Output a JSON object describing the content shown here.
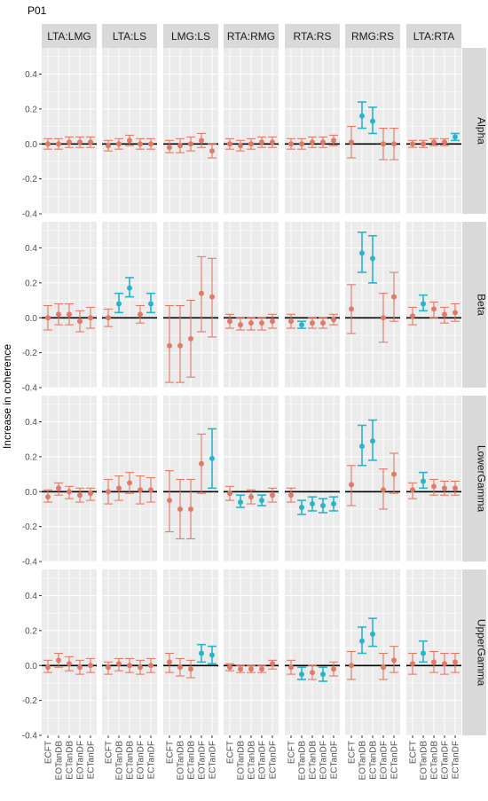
{
  "title": "P01",
  "chart_data": {
    "type": "scatter",
    "title": "P01",
    "xlabel": "",
    "ylabel": "Increase in coherence",
    "ylim": [
      -0.4,
      0.55
    ],
    "yticks": [
      -0.4,
      -0.2,
      0.0,
      0.2,
      0.4
    ],
    "ytick_labels": [
      "-0.4",
      "-0.2",
      "0.0",
      "0.2",
      "0.4"
    ],
    "grid": true,
    "reference_line": 0,
    "colors": {
      "nonsig": "#e07b6a",
      "sig": "#2ab4cc",
      "panel_bg": "#ebebeb",
      "strip_bg": "#d9d9d9",
      "grid": "#ffffff",
      "zero_line": "#000000"
    },
    "columns": [
      "LTA:LMG",
      "LTA:LS",
      "LMG:LS",
      "RTA:RMG",
      "RTA:RS",
      "RMG:RS",
      "LTA:RTA"
    ],
    "rows": [
      "Alpha",
      "Beta",
      "LowerGamma",
      "UpperGamma"
    ],
    "categories": [
      "ECFT",
      "EOTanDB",
      "ECTanDB",
      "EOTanDF",
      "ECTanDF"
    ],
    "panels": [
      [
        [
          {
            "y": 0.0,
            "lo": -0.03,
            "hi": 0.03,
            "sig": false
          },
          {
            "y": 0.0,
            "lo": -0.03,
            "hi": 0.03,
            "sig": false
          },
          {
            "y": 0.01,
            "lo": -0.02,
            "hi": 0.04,
            "sig": false
          },
          {
            "y": 0.01,
            "lo": -0.02,
            "hi": 0.04,
            "sig": false
          },
          {
            "y": 0.01,
            "lo": -0.02,
            "hi": 0.04,
            "sig": false
          }
        ],
        [
          {
            "y": -0.01,
            "lo": -0.04,
            "hi": 0.02,
            "sig": false
          },
          {
            "y": 0.0,
            "lo": -0.03,
            "hi": 0.03,
            "sig": false
          },
          {
            "y": 0.02,
            "lo": -0.01,
            "hi": 0.05,
            "sig": false
          },
          {
            "y": 0.0,
            "lo": -0.03,
            "hi": 0.03,
            "sig": false
          },
          {
            "y": 0.0,
            "lo": -0.03,
            "hi": 0.03,
            "sig": false
          }
        ],
        [
          {
            "y": -0.02,
            "lo": -0.05,
            "hi": 0.02,
            "sig": false
          },
          {
            "y": -0.01,
            "lo": -0.05,
            "hi": 0.03,
            "sig": false
          },
          {
            "y": 0.0,
            "lo": -0.04,
            "hi": 0.04,
            "sig": false
          },
          {
            "y": 0.02,
            "lo": -0.02,
            "hi": 0.06,
            "sig": false
          },
          {
            "y": -0.04,
            "lo": -0.08,
            "hi": 0.0,
            "sig": false
          }
        ],
        [
          {
            "y": 0.0,
            "lo": -0.03,
            "hi": 0.03,
            "sig": false
          },
          {
            "y": -0.01,
            "lo": -0.04,
            "hi": 0.02,
            "sig": false
          },
          {
            "y": 0.0,
            "lo": -0.03,
            "hi": 0.03,
            "sig": false
          },
          {
            "y": 0.01,
            "lo": -0.02,
            "hi": 0.04,
            "sig": false
          },
          {
            "y": 0.01,
            "lo": -0.02,
            "hi": 0.04,
            "sig": false
          }
        ],
        [
          {
            "y": 0.0,
            "lo": -0.03,
            "hi": 0.03,
            "sig": false
          },
          {
            "y": 0.0,
            "lo": -0.03,
            "hi": 0.03,
            "sig": false
          },
          {
            "y": 0.01,
            "lo": -0.02,
            "hi": 0.04,
            "sig": false
          },
          {
            "y": 0.01,
            "lo": -0.02,
            "hi": 0.04,
            "sig": false
          },
          {
            "y": 0.02,
            "lo": -0.01,
            "hi": 0.05,
            "sig": false
          }
        ],
        [
          {
            "y": 0.01,
            "lo": -0.08,
            "hi": 0.1,
            "sig": false
          },
          {
            "y": 0.16,
            "lo": 0.09,
            "hi": 0.24,
            "sig": true
          },
          {
            "y": 0.13,
            "lo": 0.06,
            "hi": 0.21,
            "sig": true
          },
          {
            "y": 0.0,
            "lo": -0.09,
            "hi": 0.09,
            "sig": false
          },
          {
            "y": 0.0,
            "lo": -0.09,
            "hi": 0.09,
            "sig": false
          }
        ],
        [
          {
            "y": 0.0,
            "lo": -0.02,
            "hi": 0.02,
            "sig": false
          },
          {
            "y": 0.0,
            "lo": -0.02,
            "hi": 0.02,
            "sig": false
          },
          {
            "y": 0.01,
            "lo": -0.01,
            "hi": 0.03,
            "sig": false
          },
          {
            "y": 0.01,
            "lo": -0.01,
            "hi": 0.03,
            "sig": false
          },
          {
            "y": 0.04,
            "lo": 0.02,
            "hi": 0.06,
            "sig": true
          }
        ]
      ],
      [
        [
          {
            "y": 0.0,
            "lo": -0.07,
            "hi": 0.07,
            "sig": false
          },
          {
            "y": 0.02,
            "lo": -0.04,
            "hi": 0.08,
            "sig": false
          },
          {
            "y": 0.02,
            "lo": -0.04,
            "hi": 0.08,
            "sig": false
          },
          {
            "y": -0.02,
            "lo": -0.08,
            "hi": 0.04,
            "sig": false
          },
          {
            "y": 0.0,
            "lo": -0.06,
            "hi": 0.06,
            "sig": false
          }
        ],
        [
          {
            "y": 0.0,
            "lo": -0.05,
            "hi": 0.05,
            "sig": false
          },
          {
            "y": 0.08,
            "lo": 0.03,
            "hi": 0.14,
            "sig": true
          },
          {
            "y": 0.17,
            "lo": 0.12,
            "hi": 0.23,
            "sig": true
          },
          {
            "y": 0.02,
            "lo": -0.03,
            "hi": 0.07,
            "sig": false
          },
          {
            "y": 0.08,
            "lo": 0.03,
            "hi": 0.14,
            "sig": true
          }
        ],
        [
          {
            "y": -0.16,
            "lo": -0.37,
            "hi": 0.07,
            "sig": false
          },
          {
            "y": -0.16,
            "lo": -0.37,
            "hi": 0.07,
            "sig": false
          },
          {
            "y": -0.12,
            "lo": -0.34,
            "hi": 0.1,
            "sig": false
          },
          {
            "y": 0.14,
            "lo": -0.08,
            "hi": 0.35,
            "sig": false
          },
          {
            "y": 0.12,
            "lo": -0.11,
            "hi": 0.34,
            "sig": false
          }
        ],
        [
          {
            "y": -0.02,
            "lo": -0.06,
            "hi": 0.02,
            "sig": false
          },
          {
            "y": -0.04,
            "lo": -0.07,
            "hi": 0.0,
            "sig": false
          },
          {
            "y": -0.03,
            "lo": -0.07,
            "hi": 0.0,
            "sig": false
          },
          {
            "y": -0.03,
            "lo": -0.07,
            "hi": 0.0,
            "sig": false
          },
          {
            "y": -0.02,
            "lo": -0.06,
            "hi": 0.02,
            "sig": false
          }
        ],
        [
          {
            "y": -0.02,
            "lo": -0.06,
            "hi": 0.02,
            "sig": false
          },
          {
            "y": -0.04,
            "lo": -0.06,
            "hi": -0.02,
            "sig": true
          },
          {
            "y": -0.03,
            "lo": -0.06,
            "hi": 0.0,
            "sig": false
          },
          {
            "y": -0.03,
            "lo": -0.06,
            "hi": 0.0,
            "sig": false
          },
          {
            "y": -0.01,
            "lo": -0.04,
            "hi": 0.02,
            "sig": false
          }
        ],
        [
          {
            "y": 0.05,
            "lo": -0.09,
            "hi": 0.19,
            "sig": false
          },
          {
            "y": 0.37,
            "lo": 0.26,
            "hi": 0.49,
            "sig": true
          },
          {
            "y": 0.34,
            "lo": 0.2,
            "hi": 0.47,
            "sig": true
          },
          {
            "y": 0.0,
            "lo": -0.14,
            "hi": 0.14,
            "sig": false
          },
          {
            "y": 0.12,
            "lo": -0.02,
            "hi": 0.26,
            "sig": false
          }
        ],
        [
          {
            "y": 0.01,
            "lo": -0.04,
            "hi": 0.06,
            "sig": false
          },
          {
            "y": 0.08,
            "lo": 0.04,
            "hi": 0.13,
            "sig": true
          },
          {
            "y": 0.05,
            "lo": 0.0,
            "hi": 0.09,
            "sig": false
          },
          {
            "y": 0.02,
            "lo": -0.03,
            "hi": 0.06,
            "sig": false
          },
          {
            "y": 0.03,
            "lo": -0.02,
            "hi": 0.08,
            "sig": false
          }
        ]
      ],
      [
        [
          {
            "y": -0.03,
            "lo": -0.06,
            "hi": 0.01,
            "sig": false
          },
          {
            "y": 0.02,
            "lo": -0.02,
            "hi": 0.05,
            "sig": false
          },
          {
            "y": 0.0,
            "lo": -0.04,
            "hi": 0.03,
            "sig": false
          },
          {
            "y": -0.02,
            "lo": -0.06,
            "hi": 0.02,
            "sig": false
          },
          {
            "y": -0.01,
            "lo": -0.05,
            "hi": 0.02,
            "sig": false
          }
        ],
        [
          {
            "y": 0.0,
            "lo": -0.07,
            "hi": 0.07,
            "sig": false
          },
          {
            "y": 0.02,
            "lo": -0.05,
            "hi": 0.09,
            "sig": false
          },
          {
            "y": 0.05,
            "lo": -0.01,
            "hi": 0.11,
            "sig": false
          },
          {
            "y": 0.01,
            "lo": -0.07,
            "hi": 0.09,
            "sig": false
          },
          {
            "y": 0.01,
            "lo": -0.06,
            "hi": 0.08,
            "sig": false
          }
        ],
        [
          {
            "y": -0.05,
            "lo": -0.23,
            "hi": 0.12,
            "sig": false
          },
          {
            "y": -0.1,
            "lo": -0.27,
            "hi": 0.07,
            "sig": false
          },
          {
            "y": -0.1,
            "lo": -0.27,
            "hi": 0.07,
            "sig": false
          },
          {
            "y": 0.16,
            "lo": -0.01,
            "hi": 0.33,
            "sig": false
          },
          {
            "y": 0.19,
            "lo": 0.02,
            "hi": 0.36,
            "sig": true
          }
        ],
        [
          {
            "y": -0.01,
            "lo": -0.05,
            "hi": 0.03,
            "sig": false
          },
          {
            "y": -0.06,
            "lo": -0.09,
            "hi": -0.02,
            "sig": true
          },
          {
            "y": -0.03,
            "lo": -0.07,
            "hi": 0.01,
            "sig": false
          },
          {
            "y": -0.05,
            "lo": -0.08,
            "hi": -0.02,
            "sig": true
          },
          {
            "y": -0.02,
            "lo": -0.06,
            "hi": 0.02,
            "sig": false
          }
        ],
        [
          {
            "y": -0.02,
            "lo": -0.06,
            "hi": 0.02,
            "sig": false
          },
          {
            "y": -0.09,
            "lo": -0.13,
            "hi": -0.05,
            "sig": true
          },
          {
            "y": -0.07,
            "lo": -0.11,
            "hi": -0.03,
            "sig": true
          },
          {
            "y": -0.08,
            "lo": -0.12,
            "hi": -0.04,
            "sig": true
          },
          {
            "y": -0.07,
            "lo": -0.11,
            "hi": -0.03,
            "sig": true
          }
        ],
        [
          {
            "y": 0.04,
            "lo": -0.08,
            "hi": 0.15,
            "sig": false
          },
          {
            "y": 0.26,
            "lo": 0.15,
            "hi": 0.38,
            "sig": true
          },
          {
            "y": 0.29,
            "lo": 0.18,
            "hi": 0.41,
            "sig": true
          },
          {
            "y": 0.01,
            "lo": -0.1,
            "hi": 0.13,
            "sig": false
          },
          {
            "y": 0.1,
            "lo": -0.01,
            "hi": 0.22,
            "sig": false
          }
        ],
        [
          {
            "y": 0.01,
            "lo": -0.04,
            "hi": 0.05,
            "sig": false
          },
          {
            "y": 0.06,
            "lo": 0.02,
            "hi": 0.11,
            "sig": true
          },
          {
            "y": 0.03,
            "lo": -0.02,
            "hi": 0.07,
            "sig": false
          },
          {
            "y": 0.02,
            "lo": -0.02,
            "hi": 0.06,
            "sig": false
          },
          {
            "y": 0.02,
            "lo": -0.02,
            "hi": 0.06,
            "sig": false
          }
        ]
      ],
      [
        [
          {
            "y": -0.01,
            "lo": -0.04,
            "hi": 0.03,
            "sig": false
          },
          {
            "y": 0.03,
            "lo": -0.01,
            "hi": 0.07,
            "sig": false
          },
          {
            "y": 0.01,
            "lo": -0.03,
            "hi": 0.05,
            "sig": false
          },
          {
            "y": -0.01,
            "lo": -0.05,
            "hi": 0.03,
            "sig": false
          },
          {
            "y": 0.0,
            "lo": -0.04,
            "hi": 0.04,
            "sig": false
          }
        ],
        [
          {
            "y": -0.01,
            "lo": -0.05,
            "hi": 0.02,
            "sig": false
          },
          {
            "y": 0.01,
            "lo": -0.03,
            "hi": 0.04,
            "sig": false
          },
          {
            "y": 0.0,
            "lo": -0.04,
            "hi": 0.04,
            "sig": false
          },
          {
            "y": -0.01,
            "lo": -0.05,
            "hi": 0.03,
            "sig": false
          },
          {
            "y": 0.0,
            "lo": -0.04,
            "hi": 0.04,
            "sig": false
          }
        ],
        [
          {
            "y": 0.02,
            "lo": -0.04,
            "hi": 0.07,
            "sig": false
          },
          {
            "y": -0.01,
            "lo": -0.06,
            "hi": 0.04,
            "sig": false
          },
          {
            "y": -0.02,
            "lo": -0.07,
            "hi": 0.03,
            "sig": false
          },
          {
            "y": 0.07,
            "lo": 0.02,
            "hi": 0.12,
            "sig": true
          },
          {
            "y": 0.06,
            "lo": 0.01,
            "hi": 0.11,
            "sig": true
          }
        ],
        [
          {
            "y": -0.01,
            "lo": -0.03,
            "hi": 0.01,
            "sig": false
          },
          {
            "y": -0.02,
            "lo": -0.04,
            "hi": 0.0,
            "sig": false
          },
          {
            "y": -0.02,
            "lo": -0.04,
            "hi": 0.0,
            "sig": false
          },
          {
            "y": -0.02,
            "lo": -0.04,
            "hi": 0.0,
            "sig": false
          },
          {
            "y": 0.01,
            "lo": -0.02,
            "hi": 0.03,
            "sig": false
          }
        ],
        [
          {
            "y": -0.01,
            "lo": -0.05,
            "hi": 0.03,
            "sig": false
          },
          {
            "y": -0.05,
            "lo": -0.08,
            "hi": -0.01,
            "sig": true
          },
          {
            "y": -0.04,
            "lo": -0.08,
            "hi": 0.0,
            "sig": false
          },
          {
            "y": -0.05,
            "lo": -0.09,
            "hi": -0.01,
            "sig": true
          },
          {
            "y": -0.02,
            "lo": -0.06,
            "hi": 0.02,
            "sig": false
          }
        ],
        [
          {
            "y": 0.0,
            "lo": -0.08,
            "hi": 0.08,
            "sig": false
          },
          {
            "y": 0.14,
            "lo": 0.07,
            "hi": 0.22,
            "sig": true
          },
          {
            "y": 0.18,
            "lo": 0.11,
            "hi": 0.27,
            "sig": true
          },
          {
            "y": -0.01,
            "lo": -0.08,
            "hi": 0.07,
            "sig": false
          },
          {
            "y": 0.03,
            "lo": -0.04,
            "hi": 0.11,
            "sig": false
          }
        ],
        [
          {
            "y": 0.01,
            "lo": -0.05,
            "hi": 0.07,
            "sig": false
          },
          {
            "y": 0.07,
            "lo": 0.02,
            "hi": 0.14,
            "sig": true
          },
          {
            "y": 0.02,
            "lo": -0.04,
            "hi": 0.08,
            "sig": false
          },
          {
            "y": 0.01,
            "lo": -0.05,
            "hi": 0.07,
            "sig": false
          },
          {
            "y": 0.02,
            "lo": -0.04,
            "hi": 0.07,
            "sig": false
          }
        ]
      ]
    ]
  }
}
